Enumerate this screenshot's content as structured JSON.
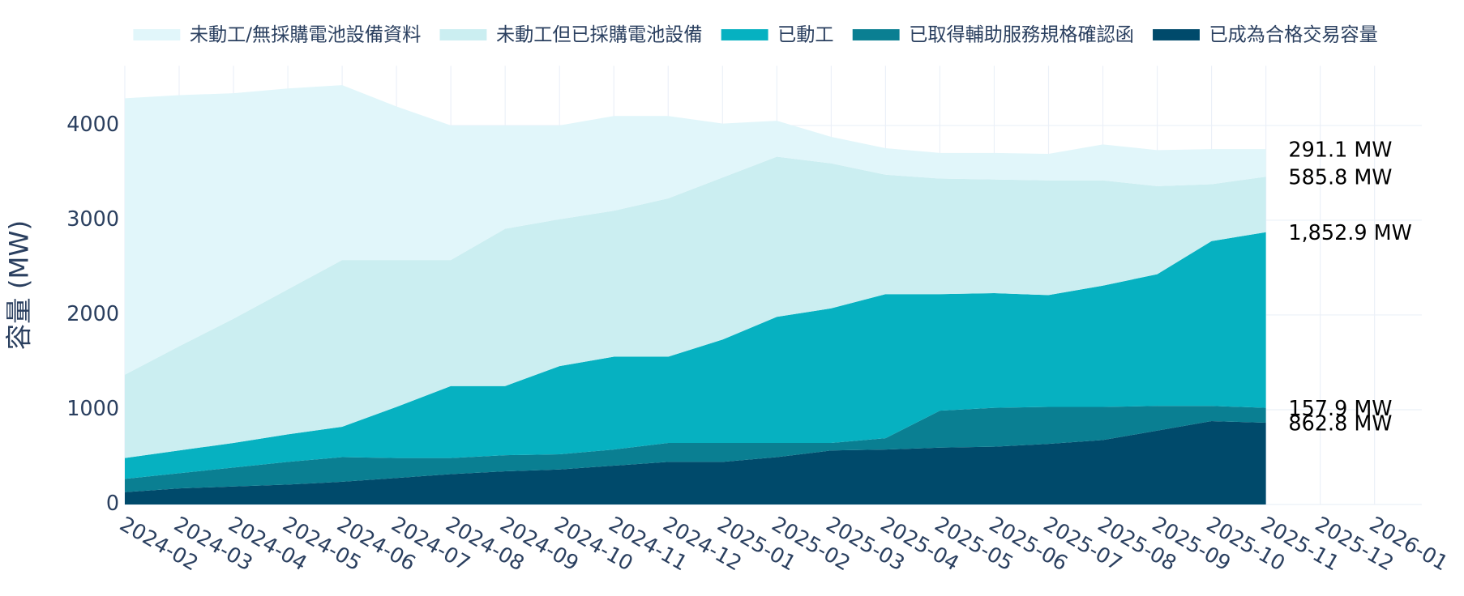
{
  "chart_data": {
    "type": "stacked-area",
    "y_label": "容量 (MW)",
    "x": [
      "2024-02",
      "2024-03",
      "2024-04",
      "2024-05",
      "2024-06",
      "2024-07",
      "2024-08",
      "2024-09",
      "2024-10",
      "2024-11",
      "2024-12",
      "2025-01",
      "2025-02",
      "2025-03",
      "2025-04",
      "2025-05",
      "2025-06",
      "2025-07",
      "2025-08",
      "2025-09",
      "2025-10",
      "2025-11"
    ],
    "xticks": [
      "2024-02",
      "2024-03",
      "2024-04",
      "2024-05",
      "2024-06",
      "2024-07",
      "2024-08",
      "2024-09",
      "2024-10",
      "2024-11",
      "2024-12",
      "2025-01",
      "2025-02",
      "2025-03",
      "2025-04",
      "2025-05",
      "2025-06",
      "2025-07",
      "2025-08",
      "2025-09",
      "2025-10",
      "2025-11",
      "2025-12",
      "2026-01"
    ],
    "ylim": [
      0,
      4630
    ],
    "yticks": [
      0,
      1000,
      2000,
      3000,
      4000
    ],
    "grid": true,
    "legend": "top",
    "series": [
      {
        "name": "已成為合格交易容量",
        "color": "#004a6b",
        "values": [
          130,
          170,
          190,
          210,
          240,
          280,
          320,
          350,
          370,
          410,
          450,
          450,
          500,
          570,
          580,
          600,
          610,
          640,
          680,
          780,
          880,
          862.8
        ],
        "value_labels": [
          null,
          null,
          null,
          null,
          null,
          null,
          null,
          null,
          null,
          null,
          null,
          null,
          null,
          null,
          null,
          null,
          null,
          null,
          null,
          null,
          null,
          "862.8 MW"
        ]
      },
      {
        "name": "已取得輔助服務規格確認函",
        "color": "#0a7f92",
        "values": [
          140,
          160,
          200,
          240,
          260,
          210,
          170,
          170,
          160,
          170,
          200,
          200,
          150,
          80,
          120,
          390,
          410,
          390,
          350,
          260,
          160,
          157.9
        ],
        "value_labels": [
          null,
          null,
          null,
          null,
          null,
          null,
          null,
          null,
          null,
          null,
          null,
          null,
          null,
          null,
          null,
          null,
          null,
          null,
          null,
          null,
          null,
          "157.9 MW"
        ]
      },
      {
        "name": "已動工",
        "color": "#06b1c1",
        "values": [
          220,
          240,
          260,
          290,
          320,
          540,
          760,
          730,
          930,
          980,
          910,
          1090,
          1330,
          1420,
          1520,
          1230,
          1210,
          1180,
          1280,
          1390,
          1740,
          1852.9
        ],
        "value_labels": [
          null,
          null,
          null,
          null,
          null,
          null,
          null,
          null,
          null,
          null,
          null,
          null,
          null,
          null,
          null,
          null,
          null,
          null,
          null,
          null,
          null,
          "1,852.9 MW"
        ]
      },
      {
        "name": "未動工但已採購電池設備",
        "color": "#cbeef1",
        "values": [
          880,
          1100,
          1310,
          1530,
          1760,
          1550,
          1330,
          1660,
          1550,
          1540,
          1670,
          1710,
          1690,
          1530,
          1260,
          1220,
          1200,
          1210,
          1110,
          930,
          600,
          585.8
        ],
        "value_labels": [
          null,
          null,
          null,
          null,
          null,
          null,
          null,
          null,
          null,
          null,
          null,
          null,
          null,
          null,
          null,
          null,
          null,
          null,
          null,
          null,
          null,
          "585.8 MW"
        ]
      },
      {
        "name": "未動工/無採購電池設備資料",
        "color": "#e1f6fa",
        "values": [
          2917,
          2650,
          2380,
          2120,
          1846,
          1620,
          1420,
          1090,
          990,
          1000,
          870,
          570,
          380,
          280,
          280,
          270,
          280,
          280,
          380,
          380,
          370,
          291.1
        ],
        "value_labels": [
          null,
          null,
          null,
          null,
          null,
          null,
          null,
          null,
          null,
          null,
          null,
          null,
          null,
          null,
          null,
          null,
          null,
          null,
          null,
          null,
          null,
          "291.1 MW"
        ]
      }
    ]
  }
}
